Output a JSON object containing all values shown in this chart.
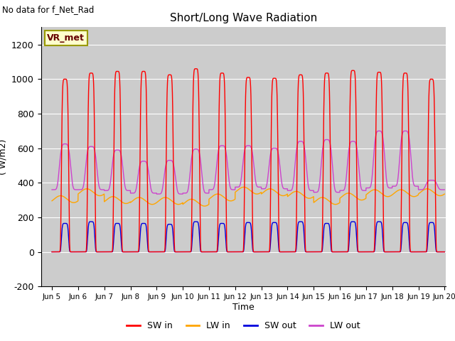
{
  "title": "Short/Long Wave Radiation",
  "xlabel": "Time",
  "ylabel": "( W/m2)",
  "ylim": [
    -200,
    1300
  ],
  "yticks": [
    -200,
    0,
    200,
    400,
    600,
    800,
    1000,
    1200
  ],
  "xlim_days": [
    4.58,
    20.05
  ],
  "annotation": "No data for f_Net_Rad",
  "legend_label": "VR_met",
  "colors": {
    "SW_in": "#ff0000",
    "LW_in": "#ffa500",
    "SW_out": "#0000dd",
    "LW_out": "#cc44cc"
  },
  "legend_items": [
    "SW in",
    "LW in",
    "SW out",
    "LW out"
  ],
  "background_color": "#ffffff",
  "plot_bg_color": "#cccccc",
  "grid_color": "#ffffff",
  "n_days": 15,
  "start_day": 5,
  "peaks_SW_in": [
    1000,
    1035,
    1045,
    1045,
    1025,
    1060,
    1035,
    1010,
    1005,
    1025,
    1035,
    1050,
    1040,
    1035,
    1000
  ],
  "peaks_SW_out": [
    165,
    175,
    165,
    165,
    160,
    175,
    165,
    170,
    170,
    175,
    165,
    175,
    175,
    170,
    170
  ],
  "base_LW_in": [
    305,
    345,
    300,
    295,
    295,
    285,
    315,
    355,
    345,
    330,
    295,
    320,
    340,
    340,
    345
  ],
  "peaks_LW_out": [
    625,
    610,
    590,
    525,
    530,
    595,
    615,
    615,
    600,
    640,
    650,
    640,
    700,
    700,
    415
  ],
  "night_LW_out": [
    360,
    360,
    355,
    340,
    335,
    340,
    360,
    375,
    365,
    355,
    345,
    355,
    370,
    380,
    360
  ]
}
